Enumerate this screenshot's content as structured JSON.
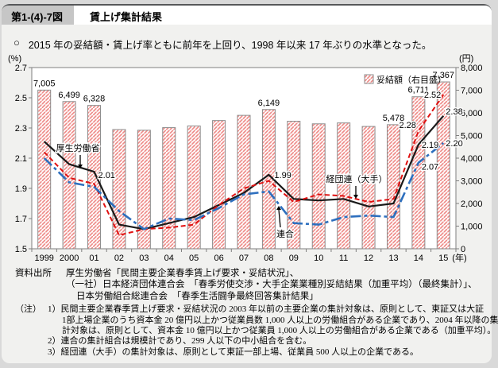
{
  "header": {
    "figure_no": "第1-(4)-7図",
    "title": "賃上げ集計結果"
  },
  "summary": {
    "bullet": "○",
    "text": "2015 年の妥結額・賃上げ率ともに前年を上回り、1998 年以来 17 年ぶりの水準となった。"
  },
  "chart_data": {
    "type": "combo_bar_line",
    "x_labels": [
      "1999",
      "2000",
      "01",
      "02",
      "03",
      "04",
      "05",
      "06",
      "07",
      "08",
      "09",
      "10",
      "11",
      "12",
      "13",
      "14",
      "15"
    ],
    "x_suffix": "(年)",
    "left_axis": {
      "unit": "(%)",
      "min": 1.5,
      "max": 2.7,
      "ticks": [
        "2.7",
        "2.5",
        "2.3",
        "2.1",
        "1.9",
        "1.7",
        "1.5"
      ]
    },
    "right_axis": {
      "unit": "(円)",
      "min": 0,
      "max": 8000,
      "ticks": [
        "8,000",
        "7,000",
        "6,000",
        "5,000",
        "4,000",
        "3,000",
        "2,000",
        "1,000",
        "0"
      ]
    },
    "bars": {
      "name": "妥結額（右目盛）",
      "axis": "right",
      "values": [
        7005,
        6499,
        6328,
        5265,
        5233,
        5348,
        5422,
        5661,
        5890,
        6149,
        5630,
        5516,
        5555,
        5400,
        5478,
        6711,
        7367
      ],
      "value_labels": {
        "0": "7,005",
        "1": "6,499",
        "2": "6,328",
        "9": "6,149",
        "14": "5,478",
        "15": "6,711",
        "16": "7,367"
      }
    },
    "series": [
      {
        "name": "厚生労働省",
        "color": "#1a1a1a",
        "dash": "",
        "width": 2.2,
        "values": [
          2.21,
          2.06,
          2.01,
          1.66,
          1.63,
          1.67,
          1.71,
          1.79,
          1.87,
          1.99,
          1.83,
          1.82,
          1.83,
          1.78,
          1.8,
          2.19,
          2.38
        ],
        "point_labels": {
          "2": "2.01",
          "9": "1.99",
          "15": "2.19",
          "16": "2.38"
        }
      },
      {
        "name": "経団連（大手）",
        "color": "#e01010",
        "dash": "6 3.5",
        "width": 2,
        "values": [
          2.14,
          1.97,
          1.93,
          1.59,
          1.63,
          1.64,
          1.66,
          1.79,
          1.9,
          1.95,
          1.81,
          1.86,
          1.85,
          1.81,
          1.83,
          2.28,
          2.52
        ],
        "point_labels": {
          "15": "2.28",
          "16": "2.52"
        }
      },
      {
        "name": "連合",
        "color": "#2d6fbe",
        "dash": "13 4 4 4",
        "width": 2.6,
        "values": [
          2.1,
          1.94,
          1.91,
          1.75,
          1.63,
          1.7,
          1.69,
          1.77,
          1.86,
          1.88,
          1.67,
          1.66,
          1.71,
          1.72,
          1.71,
          2.07,
          2.2
        ],
        "point_labels": {
          "15": "2.07",
          "16": "2.20"
        }
      }
    ],
    "annotations": [
      {
        "text": "厚生労働省",
        "tx": 96,
        "ty": 123,
        "arrow": [
          99,
          128,
          99,
          140
        ]
      },
      {
        "text": "経団連（大手）",
        "tx": 447,
        "ty": 162,
        "arrow": [
          446,
          167,
          446,
          178
        ]
      },
      {
        "text": "連合",
        "tx": 357,
        "ty": 231,
        "arrow": [
          351,
          219,
          349,
          197
        ]
      }
    ],
    "colors": {
      "bar_hatch": "#ee8986",
      "bar_border": "#8c8c8c",
      "plot_border": "#7f7f7f",
      "plot_bg": "#ffffff"
    }
  },
  "source": {
    "label": "資料出所",
    "lines": [
      "厚生労働省「民間主要企業春季賃上げ要求・妥結状況」、",
      "（一社）日本経済団体連合会　「春季労使交渉・大手企業業種別妥結結果（加重平均）（最終集計）」、",
      "日本労働組合総連合会　「春季生活闘争最終回答集計結果」"
    ]
  },
  "notes": {
    "label": "（注）",
    "lines": [
      "1）民間主要企業春季賃上げ要求・妥結状況の 2003 年以前の主要企業の集計対象は、原則として、東証又は大証",
      "1部上場企業のうち資本金 20 億円以上かつ従業員数 1,000 人以上の労働組合がある企業であり、2004 年以降の集",
      "計対象は、原則として、資本金 10 億円以上かつ従業員 1,000 人以上の労働組合がある企業である（加重平均）。",
      "2）連合の集計組合は規模計であり、299 人以下の中小組合を含む。",
      "3）経団連（大手）の集計対象は、原則として東証一部上場、従業員 500 人以上の企業である。"
    ]
  }
}
